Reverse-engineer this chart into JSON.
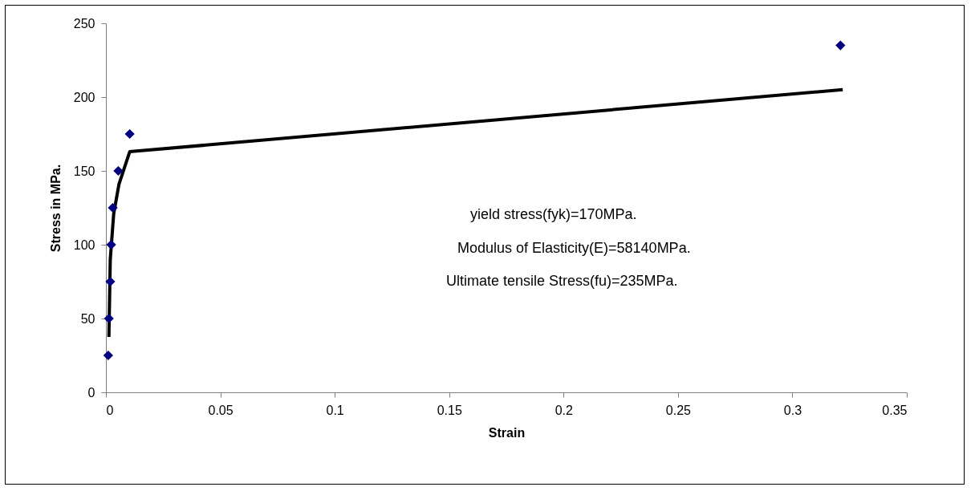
{
  "chart_data": {
    "type": "scatter",
    "xlabel": "Strain",
    "ylabel": "Stress in MPa.",
    "xlim": [
      0,
      0.35
    ],
    "ylim": [
      0,
      250
    ],
    "xticks": [
      0,
      0.05,
      0.1,
      0.15,
      0.2,
      0.25,
      0.3,
      0.35
    ],
    "yticks": [
      0,
      50,
      100,
      150,
      200,
      250
    ],
    "grid": false,
    "series": [
      {
        "color": "#000080",
        "marker": "diamond",
        "x": [
          0.001,
          0.0013,
          0.0019,
          0.0023,
          0.003,
          0.0054,
          0.0104,
          0.321
        ],
        "values": [
          25,
          50,
          75,
          100,
          125,
          150,
          175,
          235
        ]
      },
      {
        "type": "line",
        "color": "#000000",
        "marker": "none",
        "line_style": "solid",
        "x": [
          0.0013,
          0.0019,
          0.0034,
          0.0057,
          0.0104,
          0.322
        ],
        "values": [
          37.5,
          90,
          121,
          141,
          163,
          205
        ]
      }
    ],
    "annotations": [
      "yield stress(fyk)=170MPa.",
      "Modulus of Elasticity(E)=58140MPa.",
      "Ultimate tensile Stress(fu)=235MPa."
    ]
  }
}
